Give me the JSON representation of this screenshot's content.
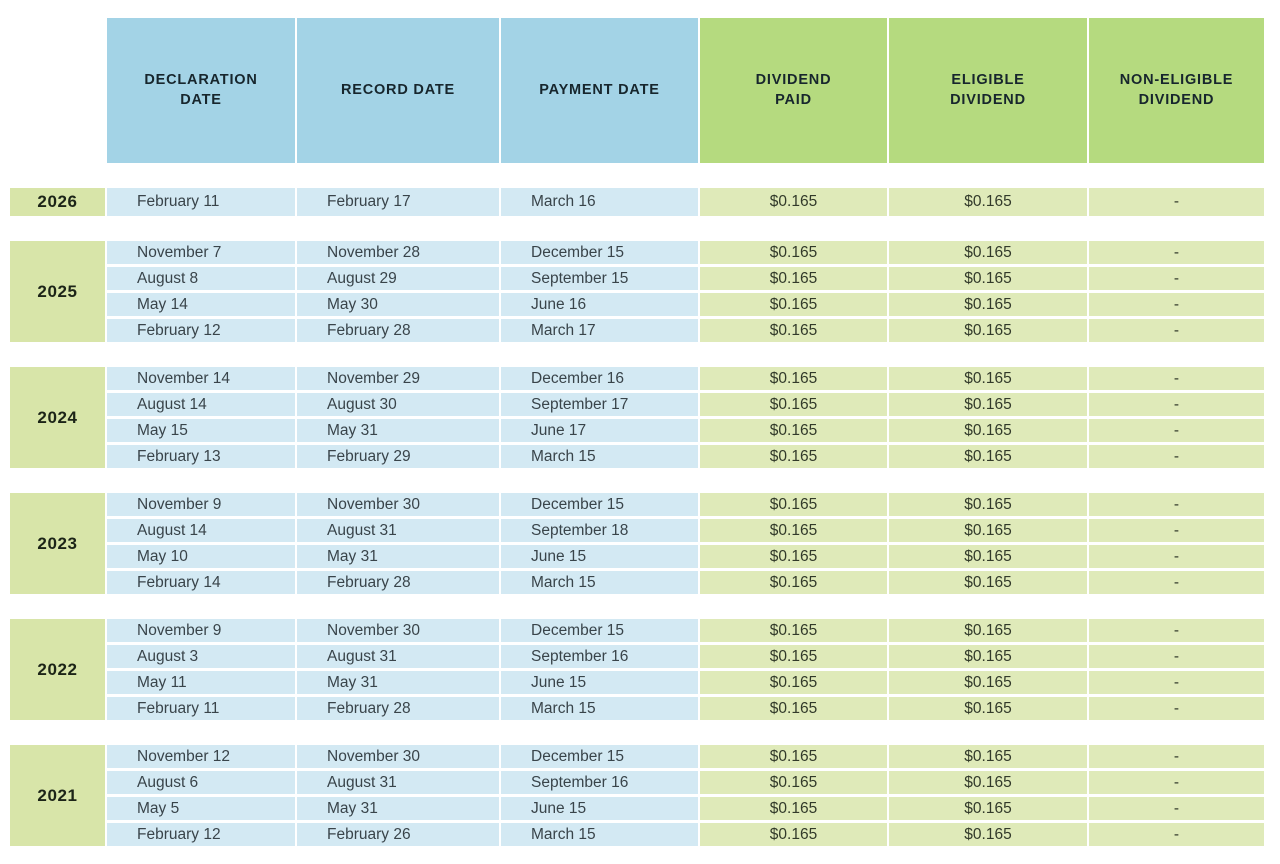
{
  "title": "Dividend history table",
  "colors": {
    "header_blue": "#a3d3e6",
    "header_green": "#b5da7f",
    "row_blue": "#d3e9f3",
    "row_green": "#dfeab9",
    "year_green": "#d8e5a9",
    "header_text": "#17262d",
    "body_text": "#39444a"
  },
  "table": {
    "headers": [
      "DECLARATION\nDATE",
      "RECORD DATE",
      "PAYMENT DATE",
      "DIVIDEND\nPAID",
      "ELIGIBLE\nDIVIDEND",
      "NON-ELIGIBLE\nDIVIDEND"
    ],
    "column_names": [
      "declaration-date",
      "record-date",
      "payment-date",
      "dividend-paid",
      "eligible-dividend",
      "non-eligible-dividend"
    ],
    "groups": [
      {
        "year": "2026",
        "rows": [
          [
            "February 11",
            "February 17",
            "March 16",
            "$0.165",
            "$0.165",
            "-"
          ]
        ]
      },
      {
        "year": "2025",
        "rows": [
          [
            "November 7",
            "November 28",
            "December 15",
            "$0.165",
            "$0.165",
            "-"
          ],
          [
            "August 8",
            "August 29",
            "September 15",
            "$0.165",
            "$0.165",
            "-"
          ],
          [
            "May 14",
            "May 30",
            "June 16",
            "$0.165",
            "$0.165",
            "-"
          ],
          [
            "February 12",
            "February 28",
            "March 17",
            "$0.165",
            "$0.165",
            "-"
          ]
        ]
      },
      {
        "year": "2024",
        "rows": [
          [
            "November 14",
            "November 29",
            "December 16",
            "$0.165",
            "$0.165",
            "-"
          ],
          [
            "August 14",
            "August 30",
            "September 17",
            "$0.165",
            "$0.165",
            "-"
          ],
          [
            "May 15",
            "May 31",
            "June 17",
            "$0.165",
            "$0.165",
            "-"
          ],
          [
            "February 13",
            "February 29",
            "March 15",
            "$0.165",
            "$0.165",
            "-"
          ]
        ]
      },
      {
        "year": "2023",
        "rows": [
          [
            "November 9",
            "November 30",
            "December 15",
            "$0.165",
            "$0.165",
            "-"
          ],
          [
            "August 14",
            "August 31",
            "September 18",
            "$0.165",
            "$0.165",
            "-"
          ],
          [
            "May 10",
            "May 31",
            "June 15",
            "$0.165",
            "$0.165",
            "-"
          ],
          [
            "February 14",
            "February 28",
            "March 15",
            "$0.165",
            "$0.165",
            "-"
          ]
        ]
      },
      {
        "year": "2022",
        "rows": [
          [
            "November 9",
            "November 30",
            "December 15",
            "$0.165",
            "$0.165",
            "-"
          ],
          [
            "August 3",
            "August 31",
            "September 16",
            "$0.165",
            "$0.165",
            "-"
          ],
          [
            "May 11",
            "May 31",
            "June 15",
            "$0.165",
            "$0.165",
            "-"
          ],
          [
            "February 11",
            "February 28",
            "March 15",
            "$0.165",
            "$0.165",
            "-"
          ]
        ]
      },
      {
        "year": "2021",
        "rows": [
          [
            "November 12",
            "November 30",
            "December 15",
            "$0.165",
            "$0.165",
            "-"
          ],
          [
            "August 6",
            "August 31",
            "September 16",
            "$0.165",
            "$0.165",
            "-"
          ],
          [
            "May 5",
            "May 31",
            "June 15",
            "$0.165",
            "$0.165",
            "-"
          ],
          [
            "February 12",
            "February 26",
            "March 15",
            "$0.165",
            "$0.165",
            "-"
          ]
        ]
      }
    ]
  }
}
